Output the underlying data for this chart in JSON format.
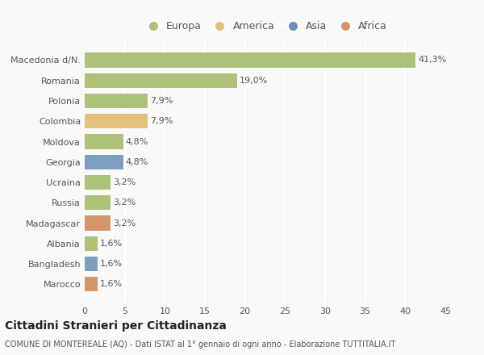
{
  "categories": [
    "Macedonia d/N.",
    "Romania",
    "Polonia",
    "Colombia",
    "Moldova",
    "Georgia",
    "Ucraina",
    "Russia",
    "Madagascar",
    "Albania",
    "Bangladesh",
    "Marocco"
  ],
  "values": [
    41.3,
    19.0,
    7.9,
    7.9,
    4.8,
    4.8,
    3.2,
    3.2,
    3.2,
    1.6,
    1.6,
    1.6
  ],
  "labels": [
    "41,3%",
    "19,0%",
    "7,9%",
    "7,9%",
    "4,8%",
    "4,8%",
    "3,2%",
    "3,2%",
    "3,2%",
    "1,6%",
    "1,6%",
    "1,6%"
  ],
  "colors": [
    "#adc178",
    "#adc178",
    "#adc178",
    "#e5c07b",
    "#adc178",
    "#7b9ec1",
    "#adc178",
    "#adc178",
    "#d4956a",
    "#adc178",
    "#7b9ec1",
    "#d4956a"
  ],
  "legend_labels": [
    "Europa",
    "America",
    "Asia",
    "Africa"
  ],
  "legend_colors": [
    "#adc178",
    "#e5c07b",
    "#6b8fb5",
    "#d4956a"
  ],
  "title": "Cittadini Stranieri per Cittadinanza",
  "subtitle": "COMUNE DI MONTEREALE (AQ) - Dati ISTAT al 1° gennaio di ogni anno - Elaborazione TUTTITALIA.IT",
  "xlim": [
    0,
    45
  ],
  "xticks": [
    0,
    5,
    10,
    15,
    20,
    25,
    30,
    35,
    40,
    45
  ],
  "background_color": "#f9f9f9",
  "grid_color": "#ffffff",
  "bar_height": 0.72,
  "title_fontsize": 10,
  "subtitle_fontsize": 7,
  "label_fontsize": 8,
  "tick_fontsize": 8,
  "legend_fontsize": 9
}
